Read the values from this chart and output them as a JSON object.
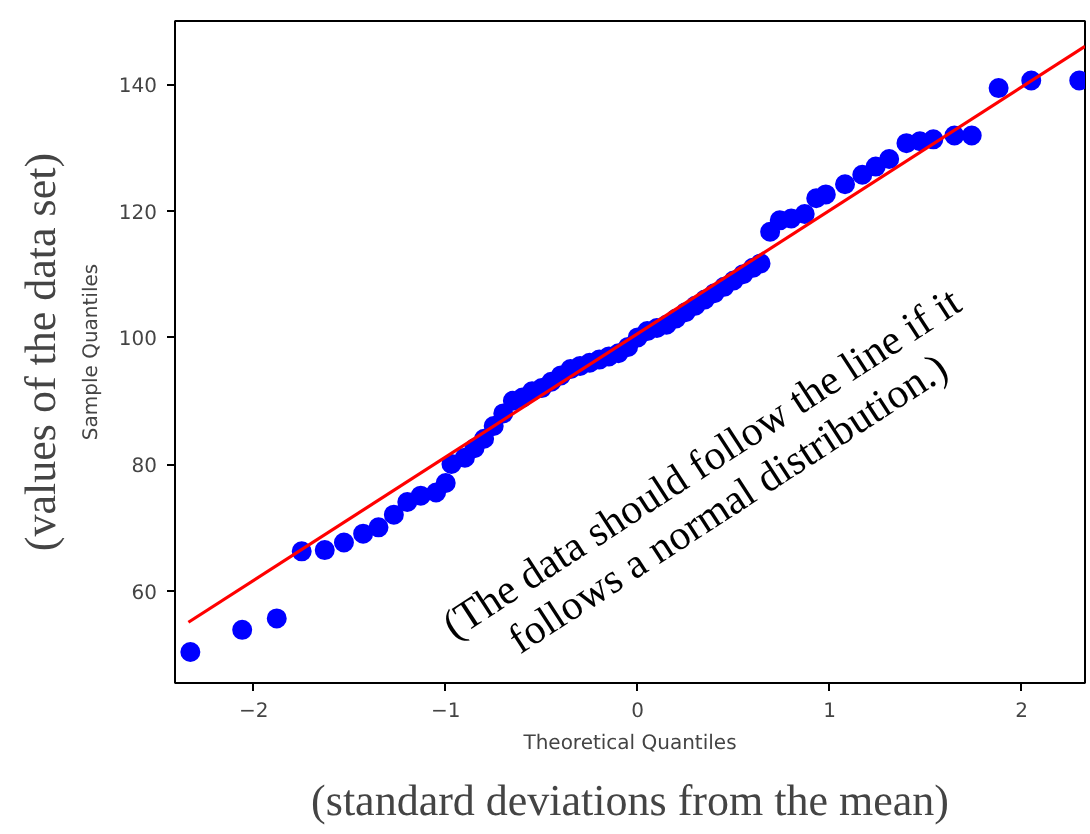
{
  "chart_data": {
    "type": "scatter",
    "xlabel": "Theoretical Quantiles",
    "ylabel": "Sample Quantiles",
    "annotations": [
      "(The data should follow the line if it\nfollows a normal distribution.)",
      "(values of the data set)",
      "(standard deviations from the mean)"
    ],
    "xlim": [
      -2.41,
      2.33
    ],
    "ylim": [
      45.4,
      150
    ],
    "xticks": [
      {
        "value": -2,
        "label": "−2"
      },
      {
        "value": -1,
        "label": "−1"
      },
      0,
      1,
      2
    ],
    "yticks": [
      60,
      80,
      100,
      120,
      140
    ],
    "grid": false,
    "series": [
      {
        "marker": "circle",
        "color": "#0000ff",
        "x": [
          -2.33,
          -2.06,
          -1.88,
          -1.75,
          -1.63,
          -1.53,
          -1.43,
          -1.35,
          -1.27,
          -1.2,
          -1.13,
          -1.05,
          -1.0,
          -0.97,
          -0.9,
          -0.85,
          -0.8,
          -0.75,
          -0.7,
          -0.65,
          -0.6,
          -0.55,
          -0.5,
          -0.45,
          -0.4,
          -0.35,
          -0.3,
          -0.25,
          -0.2,
          -0.15,
          -0.1,
          -0.05,
          0.0,
          0.05,
          0.1,
          0.15,
          0.2,
          0.25,
          0.3,
          0.35,
          0.4,
          0.45,
          0.5,
          0.55,
          0.6,
          0.64,
          0.69,
          0.74,
          0.8,
          0.87,
          0.93,
          0.98,
          1.08,
          1.17,
          1.24,
          1.31,
          1.4,
          1.47,
          1.54,
          1.65,
          1.74,
          1.88,
          2.05,
          2.3
        ],
        "values": [
          50.3,
          53.8,
          55.6,
          66.2,
          66.4,
          67.6,
          69,
          70,
          72,
          74,
          75,
          75.5,
          77,
          80,
          81,
          82.5,
          84,
          86,
          88,
          90,
          90.5,
          91.5,
          92,
          93,
          94,
          95,
          95.5,
          96,
          96.5,
          97,
          97.5,
          98.5,
          100,
          101,
          101.5,
          102,
          103,
          104,
          105,
          106,
          107,
          108,
          109,
          110,
          111,
          111.7,
          116.7,
          118.5,
          118.8,
          119.5,
          122,
          122.6,
          124.2,
          125.7,
          127,
          128.2,
          130.7,
          131,
          131.3,
          131.9,
          131.9,
          139.4,
          140.6,
          140.6
        ]
      },
      {
        "type": "line",
        "marker": "none",
        "color": "#ff0000",
        "x": [
          -2.34,
          2.33
        ],
        "values": [
          55.0,
          146.0
        ]
      }
    ]
  }
}
